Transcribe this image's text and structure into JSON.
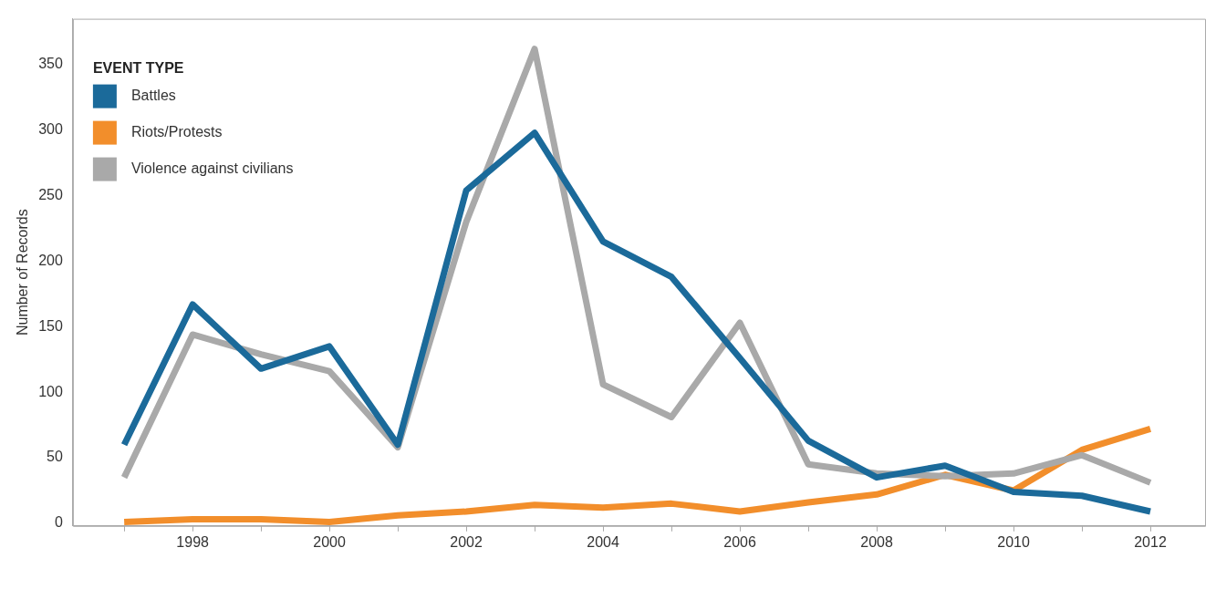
{
  "chart_data": {
    "type": "line",
    "ylabel": "Number of Records",
    "legend_title": "EVENT TYPE",
    "x": [
      1997,
      1998,
      1999,
      2000,
      2001,
      2002,
      2003,
      2004,
      2005,
      2006,
      2007,
      2008,
      2009,
      2010,
      2011,
      2012
    ],
    "series": [
      {
        "name": "Battles",
        "color": "#1b6a9a",
        "values": [
          60,
          167,
          118,
          135,
          60,
          254,
          298,
          215,
          188,
          126,
          63,
          35,
          44,
          24,
          21,
          9
        ]
      },
      {
        "name": "Riots/Protests",
        "color": "#f28e2b",
        "values": [
          1,
          3,
          3,
          1,
          6,
          9,
          14,
          12,
          15,
          9,
          16,
          22,
          37,
          25,
          56,
          72
        ]
      },
      {
        "name": "Violence against civilians",
        "color": "#a9a9a9",
        "values": [
          35,
          144,
          129,
          116,
          58,
          230,
          362,
          106,
          81,
          153,
          45,
          38,
          36,
          38,
          52,
          31
        ]
      }
    ],
    "xlim": [
      1996.25,
      2012.8
    ],
    "ylim": [
      -2,
      385
    ],
    "xticks": [
      {
        "value": 1997,
        "label": null
      },
      1998,
      {
        "value": 1999,
        "label": null
      },
      2000,
      {
        "value": 2001,
        "label": null
      },
      2002,
      {
        "value": 2003,
        "label": null
      },
      2004,
      {
        "value": 2005,
        "label": null
      },
      2006,
      {
        "value": 2007,
        "label": null
      },
      2008,
      {
        "value": 2009,
        "label": null
      },
      2010,
      {
        "value": 2011,
        "label": null
      },
      2012
    ],
    "yticks": [
      0,
      50,
      100,
      150,
      200,
      250,
      300,
      350
    ],
    "grid": false,
    "legend": "top left",
    "marker": "none",
    "line_style": "solid"
  }
}
